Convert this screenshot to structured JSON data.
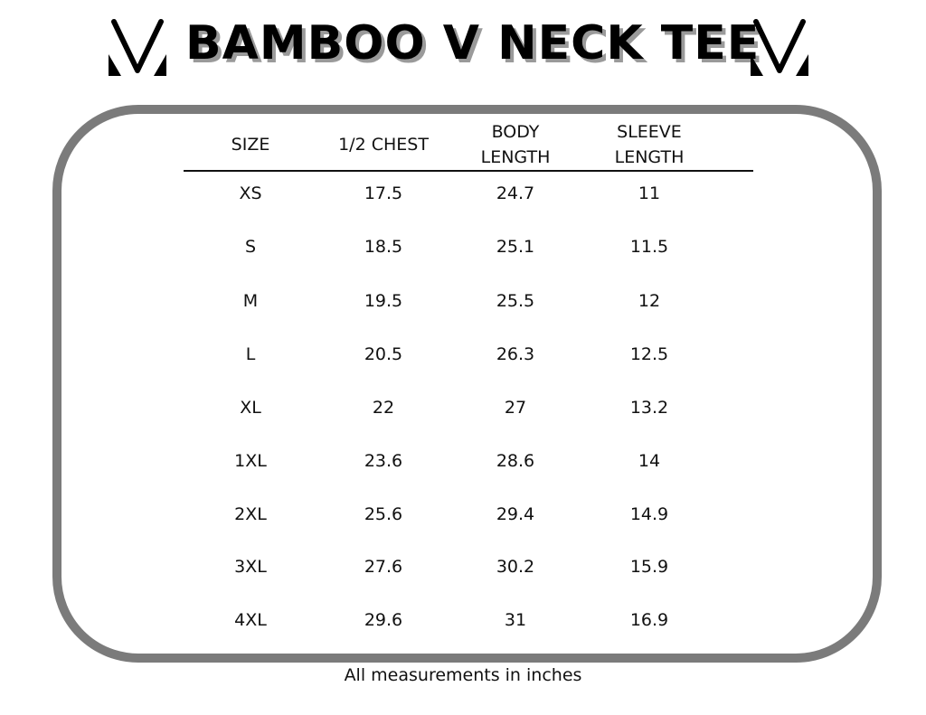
{
  "title": "BAMBOO V NECK TEE",
  "logo": "V-logo",
  "headers": [
    "SIZE",
    "1/2 CHEST",
    "BODY\nLENGTH",
    "SLEEVE\nLENGTH"
  ],
  "rows": [
    [
      "XS",
      "17.5",
      "24.7",
      "11"
    ],
    [
      "S",
      "18.5",
      "25.1",
      "11.5"
    ],
    [
      "M",
      "19.5",
      "25.5",
      "12"
    ],
    [
      "L",
      "20.5",
      "26.3",
      "12.5"
    ],
    [
      "XL",
      "22",
      "27",
      "13.2"
    ],
    [
      "1XL",
      "23.6",
      "28.6",
      "14"
    ],
    [
      "2XL",
      "25.6",
      "29.4",
      "14.9"
    ],
    [
      "3XL",
      "27.6",
      "30.2",
      "15.9"
    ],
    [
      "4XL",
      "29.6",
      "31",
      "16.9"
    ]
  ],
  "footer": "All measurements in inches",
  "colors": {
    "frame": "#7b7b7b",
    "shadow": "#9a9a9a"
  }
}
